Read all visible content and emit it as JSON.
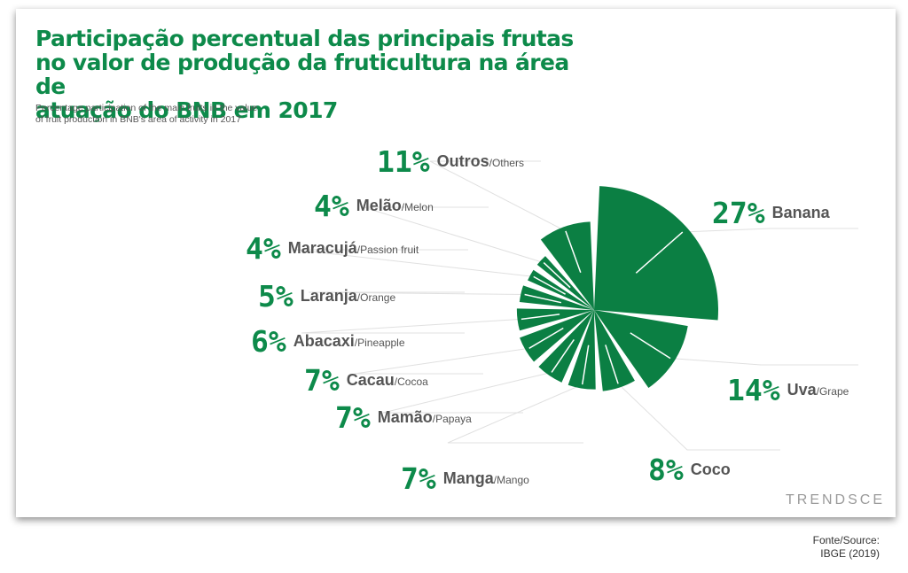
{
  "title_line1": "Participação percentual das principais frutas",
  "title_line2": "no valor de produção da fruticultura na área de",
  "title_line3": "atuação do BNB em 2017",
  "subtitle_line1": "Percentage participation of the main fruits in the value",
  "subtitle_line2": "of fruit production in BNB's area of activity in 2017",
  "brand": "TRENDSCE",
  "source_line1": "Fonte/Source:",
  "source_line2": "IBGE (2019)",
  "colors": {
    "slice": "#0b7f43",
    "accent": "#0d8a4a",
    "label": "#555555"
  },
  "chart_data": {
    "type": "pie",
    "slices": [
      {
        "label": "Banana",
        "label_en": "",
        "value": 27,
        "value_label": "27%"
      },
      {
        "label": "Uva",
        "label_en": "/Grape",
        "value": 14,
        "value_label": "14%"
      },
      {
        "label": "Coco",
        "label_en": "",
        "value": 8,
        "value_label": "8%"
      },
      {
        "label": "Manga",
        "label_en": "/Mango",
        "value": 7,
        "value_label": "7%"
      },
      {
        "label": "Mamão",
        "label_en": "/Papaya",
        "value": 7,
        "value_label": "7%"
      },
      {
        "label": "Cacau",
        "label_en": "/Cocoa",
        "value": 7,
        "value_label": "7%"
      },
      {
        "label": "Abacaxi",
        "label_en": "/Pineapple",
        "value": 6,
        "value_label": "6%"
      },
      {
        "label": "Laranja",
        "label_en": "/Orange",
        "value": 5,
        "value_label": "5%"
      },
      {
        "label": "Maracujá",
        "label_en": "/Passion fruit",
        "value": 4,
        "value_label": "4%"
      },
      {
        "label": "Melão",
        "label_en": "/Melon",
        "value": 4,
        "value_label": "4%"
      },
      {
        "label": "Outros",
        "label_en": "/Others",
        "value": 11,
        "value_label": "11%"
      }
    ]
  }
}
